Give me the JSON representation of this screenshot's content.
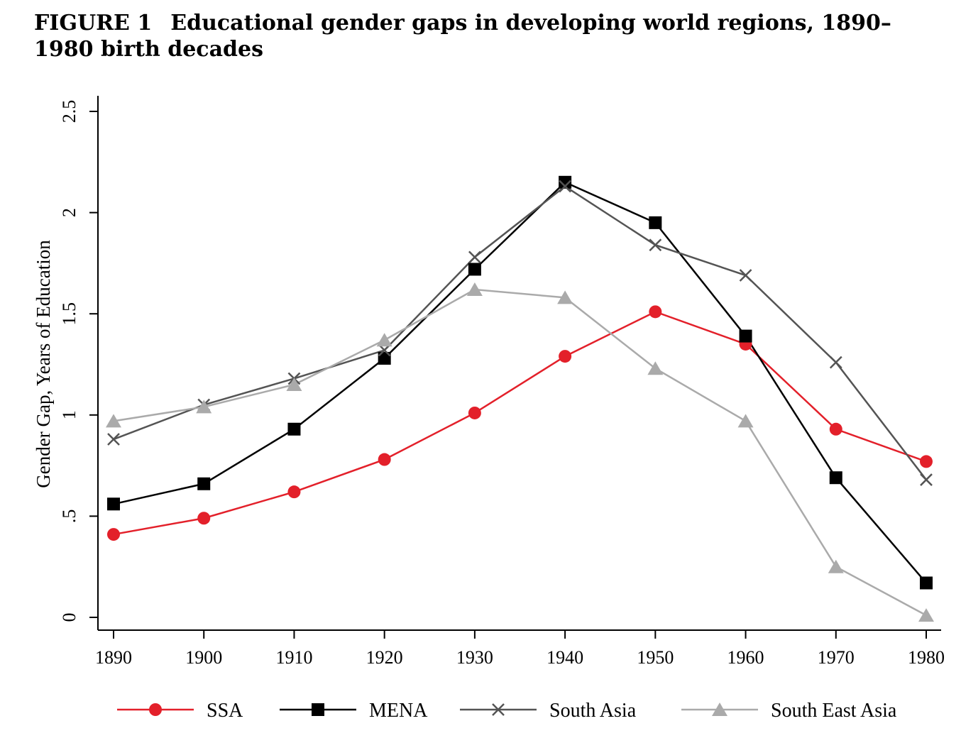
{
  "figure": {
    "label": "FIGURE 1",
    "title": "Educational gender gaps in developing world regions, 1890–1980 birth decades"
  },
  "chart_data": {
    "type": "line",
    "x": [
      1890,
      1900,
      1910,
      1920,
      1930,
      1940,
      1950,
      1960,
      1970,
      1980
    ],
    "x_tick_labels": [
      "1890",
      "1900",
      "1910",
      "1920",
      "1930",
      "1940",
      "1950",
      "1960",
      "1970",
      "1980"
    ],
    "y_ticks": [
      0,
      0.5,
      1,
      1.5,
      2,
      2.5
    ],
    "y_tick_labels": [
      "0",
      ".5",
      "1",
      "1.5",
      "2",
      "2.5"
    ],
    "xlim": [
      1890,
      1980
    ],
    "ylim": [
      0,
      2.5
    ],
    "xlabel": "",
    "ylabel": "Gender Gap, Years of Education",
    "grid": false,
    "legend_position": "bottom",
    "series": [
      {
        "name": "SSA",
        "color": "#e3202a",
        "marker": "circle",
        "values": [
          0.41,
          0.49,
          0.62,
          0.78,
          1.01,
          1.29,
          1.51,
          1.35,
          0.93,
          0.77
        ]
      },
      {
        "name": "MENA",
        "color": "#000000",
        "marker": "square",
        "values": [
          0.56,
          0.66,
          0.93,
          1.28,
          1.72,
          2.15,
          1.95,
          1.39,
          0.69,
          0.17
        ]
      },
      {
        "name": "South Asia",
        "color": "#545454",
        "marker": "cross",
        "values": [
          0.88,
          1.05,
          1.18,
          1.32,
          1.78,
          2.13,
          1.84,
          1.69,
          1.26,
          0.68
        ]
      },
      {
        "name": "South East Asia",
        "color": "#aaaaaa",
        "marker": "triangle",
        "values": [
          0.97,
          1.04,
          1.15,
          1.37,
          1.62,
          1.58,
          1.23,
          0.97,
          0.25,
          0.01
        ]
      }
    ]
  }
}
